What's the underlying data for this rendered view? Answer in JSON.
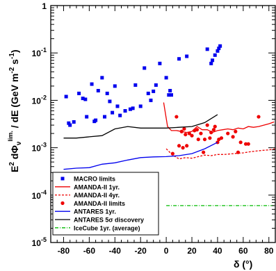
{
  "chart_data": {
    "type": "scatter",
    "x_label_symbol": "δ",
    "x_label_unit": "(°)",
    "y_label_parts": [
      "E",
      "2",
      " dΦ",
      "ν",
      "lim.",
      " / dE  (GeV m",
      "-2",
      " s",
      "-1",
      ")"
    ],
    "xlim": [
      -90,
      85
    ],
    "ylim": [
      1e-05,
      1
    ],
    "yscale": "log",
    "x_ticks": [
      -80,
      -60,
      -40,
      -20,
      0,
      20,
      40,
      60,
      80
    ],
    "y_ticks": [
      {
        "value": 1e-05,
        "base": "10",
        "exp": "-5"
      },
      {
        "value": 0.0001,
        "base": "10",
        "exp": "-4"
      },
      {
        "value": 0.001,
        "base": "10",
        "exp": "-3"
      },
      {
        "value": 0.01,
        "base": "10",
        "exp": "-2"
      },
      {
        "value": 0.1,
        "base": "10",
        "exp": "-1"
      },
      {
        "value": 1,
        "base": "1",
        "exp": ""
      }
    ],
    "grid": false,
    "legend_position": "bottom-left",
    "series": [
      {
        "name": "MACRO limits",
        "kind": "square-markers",
        "color": "#0000ee",
        "points": [
          [
            -78,
            0.012
          ],
          [
            -76,
            0.0033
          ],
          [
            -75,
            0.003
          ],
          [
            -72,
            0.0035
          ],
          [
            -68,
            0.014
          ],
          [
            -65,
            0.011
          ],
          [
            -63,
            0.0105
          ],
          [
            -62,
            0.0045
          ],
          [
            -58,
            0.022
          ],
          [
            -56,
            0.0036
          ],
          [
            -55,
            0.0038
          ],
          [
            -53,
            0.016
          ],
          [
            -50,
            0.03
          ],
          [
            -48,
            0.0045
          ],
          [
            -46,
            0.014
          ],
          [
            -44,
            0.0095
          ],
          [
            -42,
            0.0055
          ],
          [
            -40,
            0.02
          ],
          [
            -38,
            0.0075
          ],
          [
            -36,
            0.0048
          ],
          [
            -32,
            0.006
          ],
          [
            -28,
            0.0065
          ],
          [
            -26,
            0.0068
          ],
          [
            -24,
            0.021
          ],
          [
            -20,
            0.0075
          ],
          [
            -17,
            0.048
          ],
          [
            -14,
            0.014
          ],
          [
            -12,
            0.01
          ],
          [
            -10,
            0.0155
          ],
          [
            -8,
            0.021
          ],
          [
            -5,
            0.06
          ],
          [
            0,
            0.03
          ],
          [
            2,
            0.013
          ],
          [
            3,
            0.016
          ],
          [
            4,
            0.013
          ],
          [
            10,
            0.075
          ],
          [
            16,
            0.085
          ],
          [
            32,
            0.12
          ],
          [
            35,
            0.06
          ],
          [
            36,
            0.07
          ],
          [
            38,
            0.09
          ],
          [
            40,
            0.11
          ],
          [
            41,
            0.125
          ],
          [
            42,
            0.14
          ]
        ]
      },
      {
        "name": "AMANDA-II 1yr.",
        "kind": "solid-line",
        "color": "#ee0000",
        "points": [
          [
            -2,
            0.009
          ],
          [
            1,
            0.0028
          ],
          [
            4,
            0.0023
          ],
          [
            8,
            0.0023
          ],
          [
            12,
            0.0022
          ],
          [
            16,
            0.0021
          ],
          [
            20,
            0.0022
          ],
          [
            24,
            0.0028
          ],
          [
            28,
            0.0024
          ],
          [
            32,
            0.0024
          ],
          [
            36,
            0.0021
          ],
          [
            40,
            0.0023
          ],
          [
            44,
            0.0024
          ],
          [
            48,
            0.0025
          ],
          [
            52,
            0.0024
          ],
          [
            56,
            0.0026
          ],
          [
            60,
            0.0025
          ],
          [
            64,
            0.0028
          ],
          [
            68,
            0.0027
          ],
          [
            72,
            0.0028
          ],
          [
            76,
            0.003
          ],
          [
            80,
            0.0032
          ],
          [
            84,
            0.0035
          ]
        ]
      },
      {
        "name": "AMANDA-II 4yr.",
        "kind": "dashed-line",
        "color": "#ee0000",
        "points": [
          [
            0,
            0.00095
          ],
          [
            5,
            0.0007
          ],
          [
            10,
            0.00058
          ],
          [
            15,
            0.00062
          ],
          [
            20,
            0.0006
          ],
          [
            25,
            0.00065
          ],
          [
            30,
            0.0007
          ],
          [
            35,
            0.00068
          ],
          [
            40,
            0.00072
          ],
          [
            45,
            0.00072
          ],
          [
            50,
            0.00074
          ],
          [
            55,
            0.00076
          ],
          [
            60,
            0.00078
          ],
          [
            65,
            0.00082
          ],
          [
            70,
            0.00085
          ],
          [
            75,
            0.00088
          ],
          [
            80,
            0.0009
          ],
          [
            85,
            0.00095
          ]
        ]
      },
      {
        "name": "AMANDA-II limits",
        "kind": "circle-markers",
        "color": "#ee0000",
        "points": [
          [
            5,
            0.00075
          ],
          [
            8,
            0.0045
          ],
          [
            10,
            0.0011
          ],
          [
            12,
            0.0022
          ],
          [
            13,
            0.001
          ],
          [
            14,
            0.0025
          ],
          [
            15,
            0.0019
          ],
          [
            16,
            0.0011
          ],
          [
            18,
            0.002
          ],
          [
            20,
            0.0018
          ],
          [
            22,
            0.0023
          ],
          [
            24,
            0.0024
          ],
          [
            25,
            0.0015
          ],
          [
            27,
            0.002
          ],
          [
            29,
            0.0008
          ],
          [
            30,
            0.0015
          ],
          [
            32,
            0.003
          ],
          [
            34,
            0.0016
          ],
          [
            35,
            0.0021
          ],
          [
            37,
            0.0024
          ],
          [
            38,
            0.0028
          ],
          [
            40,
            0.0013
          ],
          [
            41,
            0.0015
          ],
          [
            43,
            0.0016
          ],
          [
            48,
            0.002
          ],
          [
            52,
            0.0017
          ],
          [
            54,
            0.0022
          ],
          [
            56,
            0.0008
          ],
          [
            58,
            0.0013
          ],
          [
            62,
            0.0012
          ],
          [
            64,
            0.0012
          ],
          [
            72,
            0.0045
          ]
        ]
      },
      {
        "name": "ANTARES 5σ discovery",
        "kind": "solid-line",
        "color": "#000000",
        "points": [
          [
            -80,
            0.0016
          ],
          [
            -70,
            0.0016
          ],
          [
            -60,
            0.0017
          ],
          [
            -50,
            0.0018
          ],
          [
            -40,
            0.0025
          ],
          [
            -30,
            0.0028
          ],
          [
            -20,
            0.0026
          ],
          [
            -10,
            0.0026
          ],
          [
            0,
            0.0026
          ],
          [
            10,
            0.0027
          ],
          [
            20,
            0.0028
          ],
          [
            30,
            0.0034
          ],
          [
            40,
            0.005
          ]
        ]
      },
      {
        "name": "ANTARES 1yr.",
        "kind": "solid-line",
        "color": "#0000ee",
        "points": [
          [
            -80,
            0.00035
          ],
          [
            -70,
            0.00037
          ],
          [
            -60,
            0.00038
          ],
          [
            -50,
            0.00045
          ],
          [
            -40,
            0.00048
          ],
          [
            -30,
            0.00055
          ],
          [
            -20,
            0.00062
          ],
          [
            -10,
            0.00064
          ],
          [
            0,
            0.00065
          ],
          [
            10,
            0.00068
          ],
          [
            20,
            0.00075
          ],
          [
            30,
            0.00095
          ],
          [
            40,
            0.0013
          ]
        ]
      },
      {
        "name": "IceCube 1yr. (average)",
        "kind": "dashdot-line",
        "color": "#00bb00",
        "points": [
          [
            0,
            6e-05
          ],
          [
            85,
            6e-05
          ]
        ]
      }
    ],
    "legend": [
      {
        "label_parts": [
          "MACRO limits"
        ],
        "ref": 0
      },
      {
        "label_parts": [
          "AMANDA-II 1yr."
        ],
        "ref": 1
      },
      {
        "label_parts": [
          "AMANDA-II 4yr."
        ],
        "ref": 2
      },
      {
        "label_parts": [
          "AMANDA-II limits"
        ],
        "ref": 3
      },
      {
        "label_parts": [
          "ANTARES 1yr."
        ],
        "ref": 5
      },
      {
        "label_parts": [
          "ANTARES 5",
          "σ",
          " discovery"
        ],
        "ref": 4
      },
      {
        "label_parts": [
          "IceCube 1yr. (average)"
        ],
        "ref": 6
      }
    ]
  }
}
